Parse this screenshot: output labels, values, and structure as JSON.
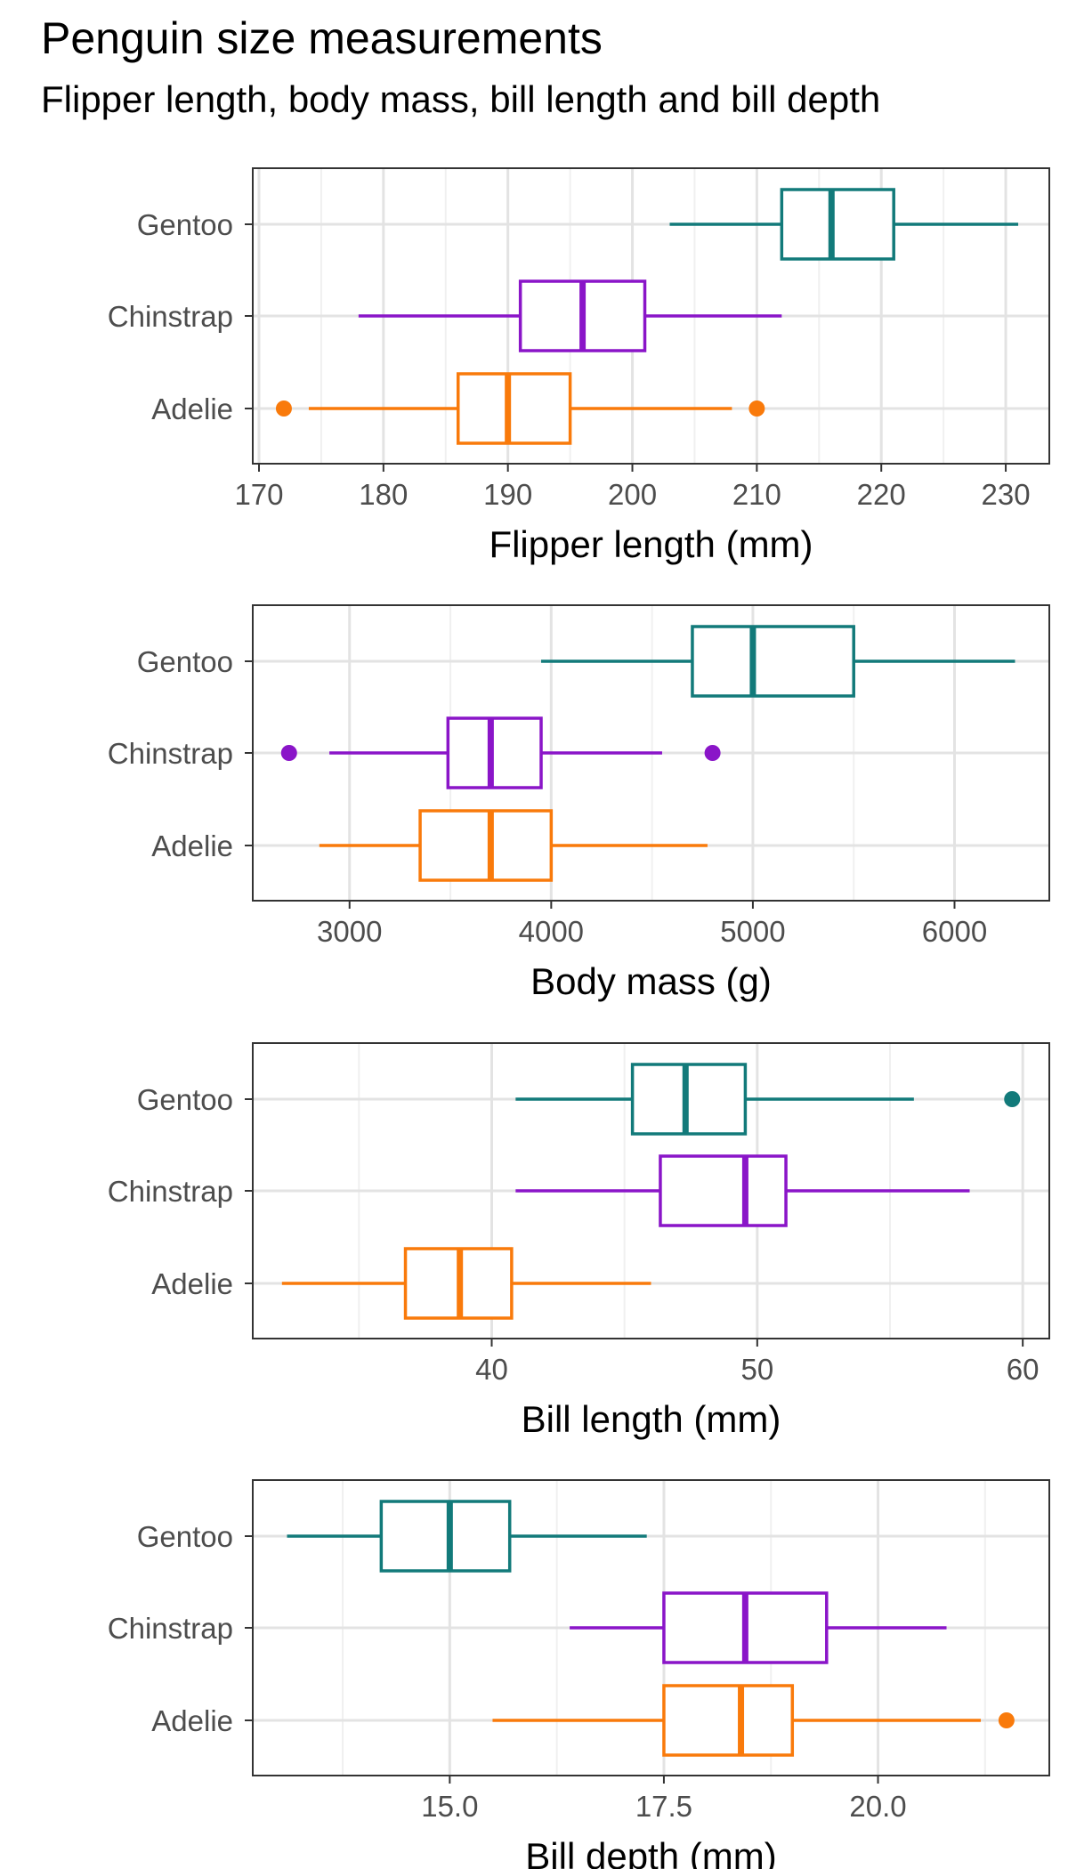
{
  "title": "Penguin size measurements",
  "subtitle": "Flipper length, body mass, bill length and bill depth",
  "colors": {
    "Gentoo": "#127a7a",
    "Chinstrap": "#8a15c8",
    "Adelie": "#f97a0b",
    "panel_border": "#333333",
    "grid_major": "#e3e3e3",
    "grid_minor": "#f0f0f0",
    "tick_text": "#4d4d4d"
  },
  "chart_data": [
    {
      "type": "boxplot",
      "xlabel": "Flipper length (mm)",
      "xlim": [
        169.5,
        233.5
      ],
      "ticks": [
        170,
        180,
        190,
        200,
        210,
        220,
        230
      ],
      "tick_labels": [
        "170",
        "180",
        "190",
        "200",
        "210",
        "220",
        "230"
      ],
      "minor_ticks": [
        175,
        185,
        195,
        205,
        215,
        225
      ],
      "grid": true,
      "categories": [
        "Gentoo",
        "Chinstrap",
        "Adelie"
      ],
      "boxes": [
        {
          "name": "Gentoo",
          "whisker_low": 203,
          "q1": 212,
          "median": 216,
          "q3": 221,
          "whisker_high": 231,
          "outliers": []
        },
        {
          "name": "Chinstrap",
          "whisker_low": 178,
          "q1": 191,
          "median": 196,
          "q3": 201,
          "whisker_high": 212,
          "outliers": []
        },
        {
          "name": "Adelie",
          "whisker_low": 174,
          "q1": 186,
          "median": 190,
          "q3": 195,
          "whisker_high": 208,
          "outliers": [
            172,
            210
          ]
        }
      ]
    },
    {
      "type": "boxplot",
      "xlabel": "Body mass (g)",
      "xlim": [
        2520,
        6470
      ],
      "ticks": [
        3000,
        4000,
        5000,
        6000
      ],
      "tick_labels": [
        "3000",
        "4000",
        "5000",
        "6000"
      ],
      "minor_ticks": [
        2500,
        3500,
        4500,
        5500,
        6500
      ],
      "grid": true,
      "categories": [
        "Gentoo",
        "Chinstrap",
        "Adelie"
      ],
      "boxes": [
        {
          "name": "Gentoo",
          "whisker_low": 3950,
          "q1": 4700,
          "median": 5000,
          "q3": 5500,
          "whisker_high": 6300,
          "outliers": []
        },
        {
          "name": "Chinstrap",
          "whisker_low": 2900,
          "q1": 3488,
          "median": 3700,
          "q3": 3950,
          "whisker_high": 4550,
          "outliers": [
            2700,
            4800
          ]
        },
        {
          "name": "Adelie",
          "whisker_low": 2850,
          "q1": 3350,
          "median": 3700,
          "q3": 4000,
          "whisker_high": 4775,
          "outliers": []
        }
      ]
    },
    {
      "type": "boxplot",
      "xlabel": "Bill length (mm)",
      "xlim": [
        31.0,
        61.0
      ],
      "ticks": [
        40,
        50,
        60
      ],
      "tick_labels": [
        "40",
        "50",
        "60"
      ],
      "minor_ticks": [
        35,
        45,
        55
      ],
      "grid": true,
      "categories": [
        "Gentoo",
        "Chinstrap",
        "Adelie"
      ],
      "boxes": [
        {
          "name": "Gentoo",
          "whisker_low": 40.9,
          "q1": 45.3,
          "median": 47.3,
          "q3": 49.55,
          "whisker_high": 55.9,
          "outliers": [
            59.6
          ]
        },
        {
          "name": "Chinstrap",
          "whisker_low": 40.9,
          "q1": 46.35,
          "median": 49.55,
          "q3": 51.08,
          "whisker_high": 58.0,
          "outliers": []
        },
        {
          "name": "Adelie",
          "whisker_low": 32.1,
          "q1": 36.75,
          "median": 38.8,
          "q3": 40.75,
          "whisker_high": 46.0,
          "outliers": []
        }
      ]
    },
    {
      "type": "boxplot",
      "xlabel": "Bill depth (mm)",
      "xlim": [
        12.7,
        22.0
      ],
      "ticks": [
        15.0,
        17.5,
        20.0
      ],
      "tick_labels": [
        "15.0",
        "17.5",
        "20.0"
      ],
      "minor_ticks": [
        13.75,
        16.25,
        18.75,
        21.25
      ],
      "grid": true,
      "categories": [
        "Gentoo",
        "Chinstrap",
        "Adelie"
      ],
      "boxes": [
        {
          "name": "Gentoo",
          "whisker_low": 13.1,
          "q1": 14.2,
          "median": 15.0,
          "q3": 15.7,
          "whisker_high": 17.3,
          "outliers": []
        },
        {
          "name": "Chinstrap",
          "whisker_low": 16.4,
          "q1": 17.5,
          "median": 18.45,
          "q3": 19.4,
          "whisker_high": 20.8,
          "outliers": []
        },
        {
          "name": "Adelie",
          "whisker_low": 15.5,
          "q1": 17.5,
          "median": 18.4,
          "q3": 19.0,
          "whisker_high": 21.2,
          "outliers": [
            21.5
          ]
        }
      ]
    }
  ]
}
